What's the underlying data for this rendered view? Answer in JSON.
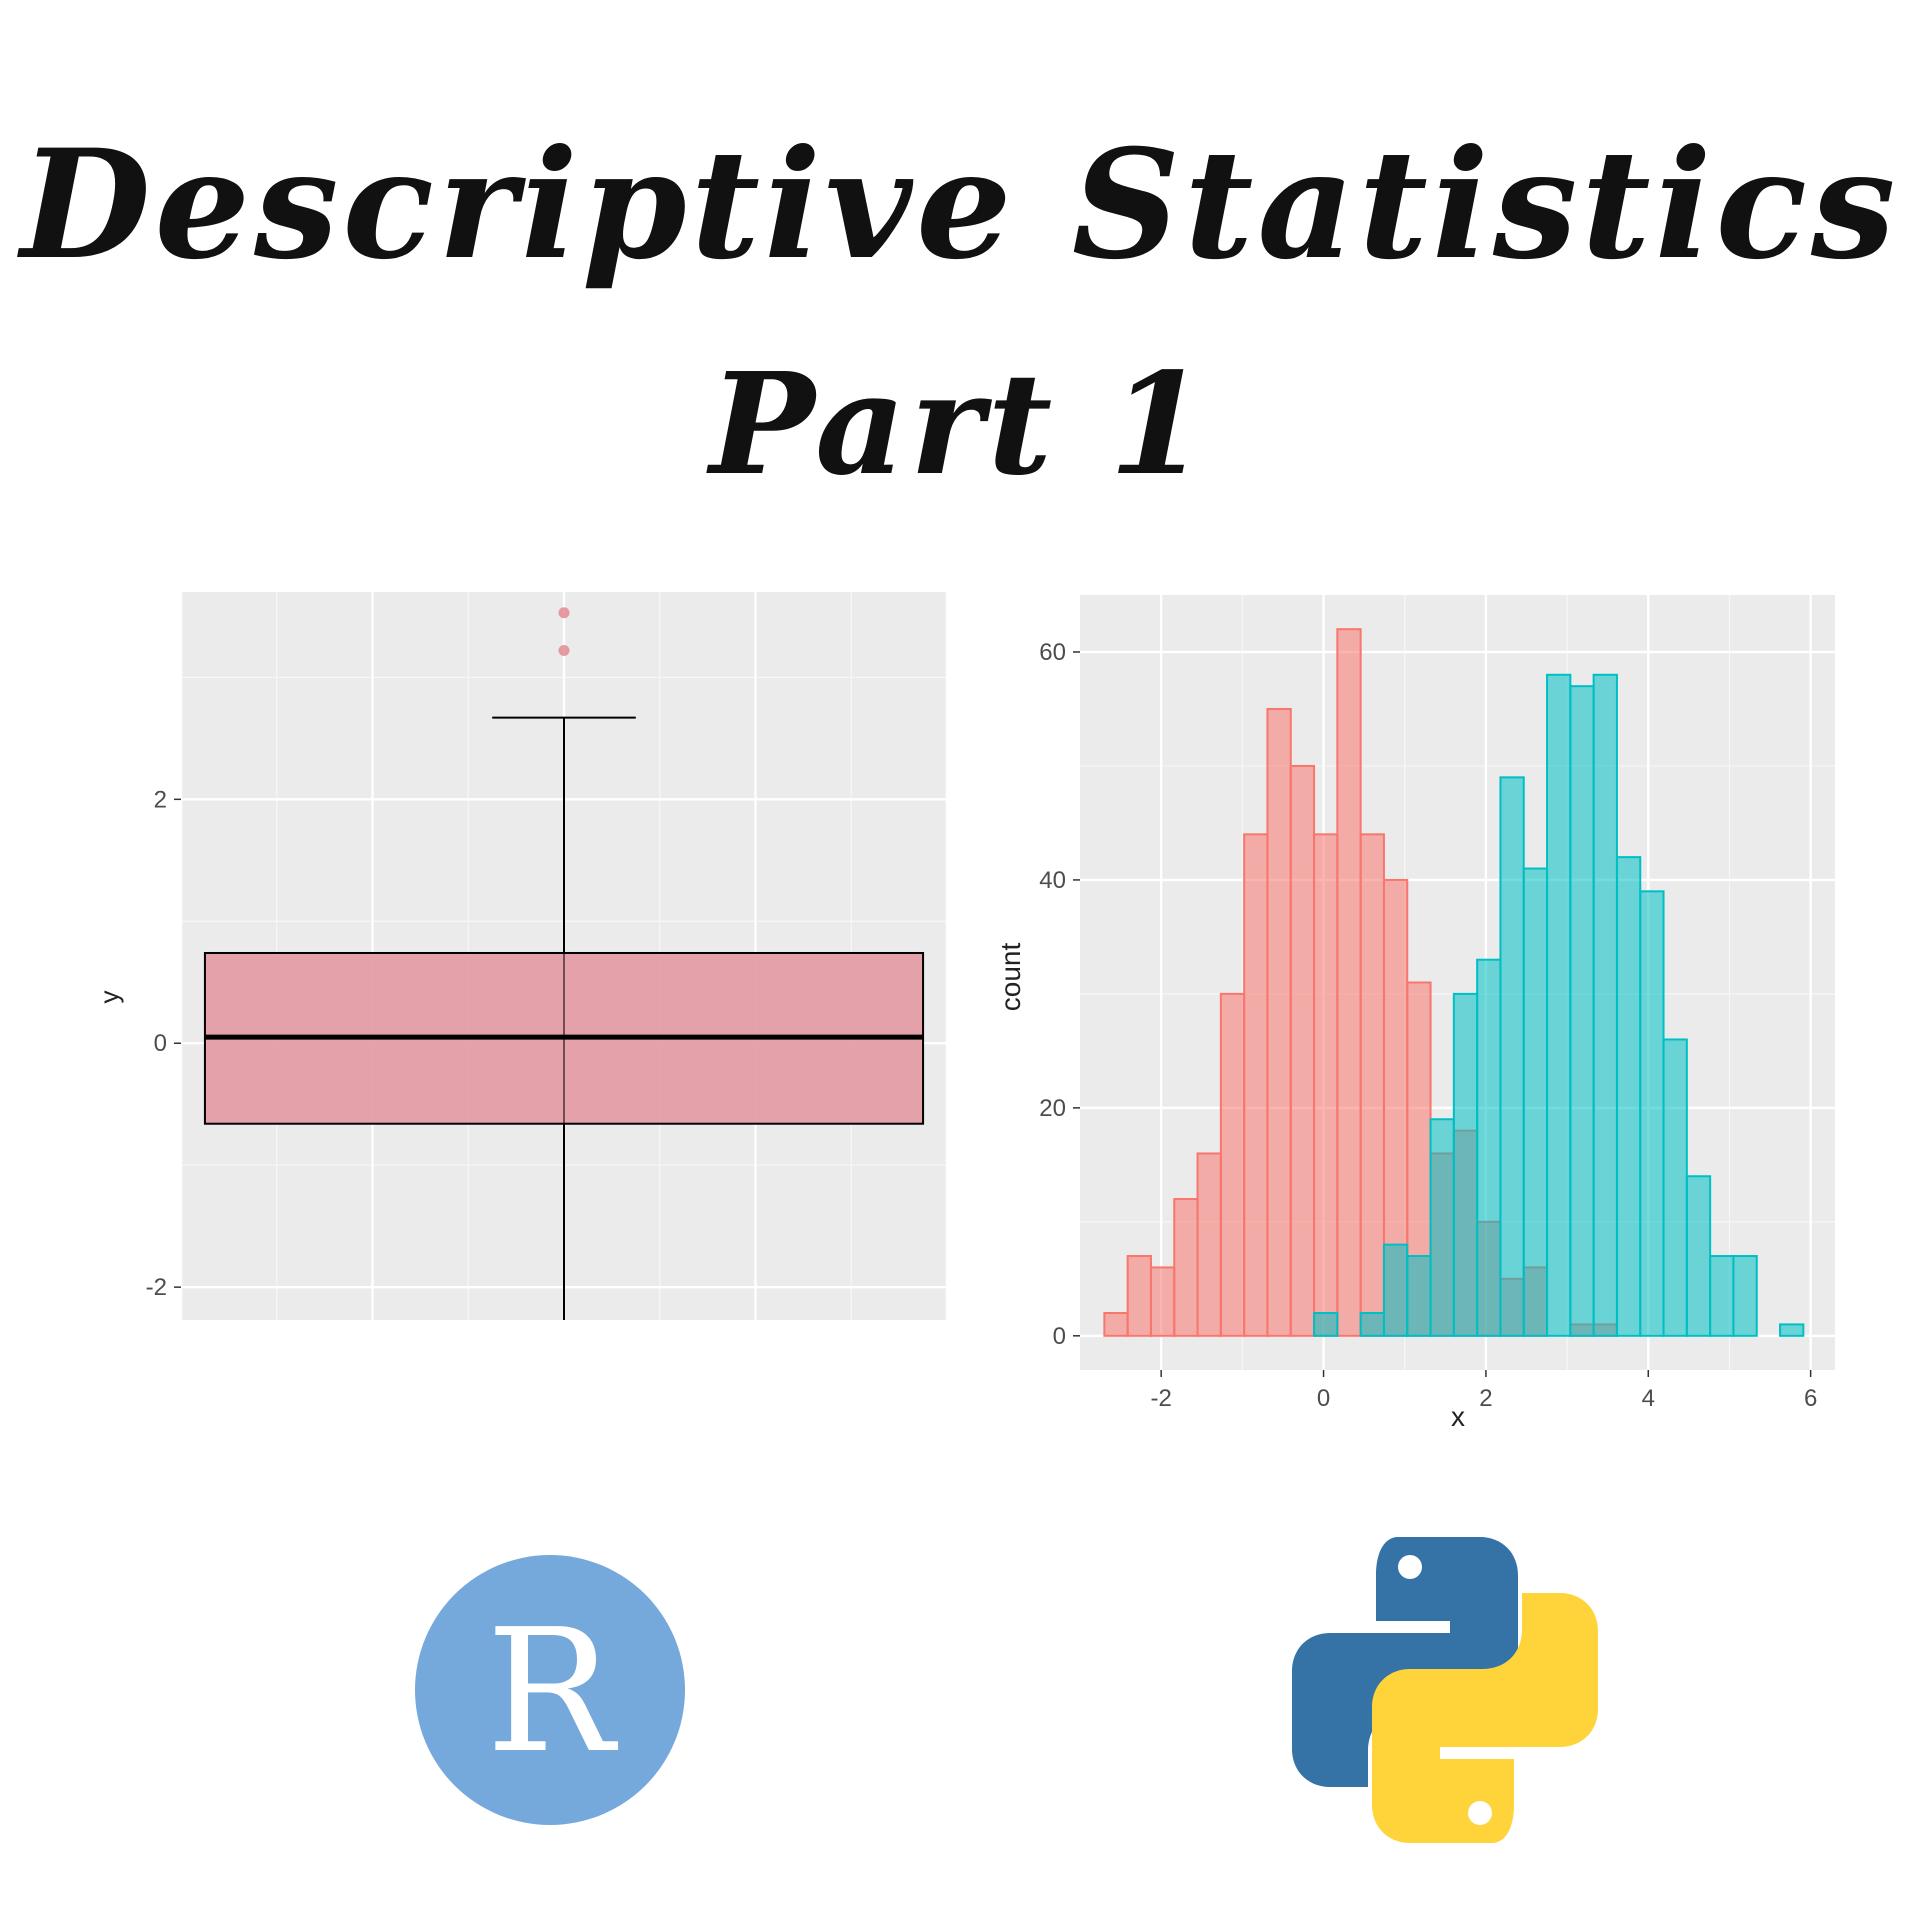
{
  "title": {
    "line1": "Descriptive Statistics",
    "line2": "Part 1"
  },
  "colors": {
    "panel_bg": "#EBEBEB",
    "grid": "#FFFFFF",
    "box_fill": "#E59DA6",
    "outlier": "#E58A94",
    "red_fill": "#F8766D",
    "cyan_fill": "#00BFC4",
    "r_logo": "#75A9DB",
    "python_blue": "#3572A5",
    "python_yellow": "#FFD43B"
  },
  "chart_data": [
    {
      "type": "box",
      "xlabel": "",
      "ylabel": "y",
      "xlim": [
        -0.4,
        0.4
      ],
      "ylim": [
        -2.95,
        3.7
      ],
      "x_ticks": [
        "-0.4",
        "-0.2",
        "0.0",
        "0.2",
        "0.4"
      ],
      "y_ticks": [
        "-2",
        "0",
        "2"
      ],
      "box": {
        "x_from": -0.375,
        "x_to": 0.375,
        "min": -2.67,
        "q1": -0.66,
        "median": 0.05,
        "q3": 0.74,
        "max": 2.67,
        "whisker_half_width": 0.075
      },
      "outliers": [
        3.22,
        3.53
      ]
    },
    {
      "type": "histogram",
      "xlabel": "x",
      "ylabel": "count",
      "xlim": [
        -3,
        6.3
      ],
      "ylim": [
        -3,
        65
      ],
      "x_ticks": [
        "-2",
        "0",
        "2",
        "4",
        "6"
      ],
      "y_ticks": [
        "0",
        "20",
        "40",
        "60"
      ],
      "bin_start": -2.7,
      "bin_width": 0.287,
      "series": [
        {
          "color": "#F8766D",
          "counts": [
            2,
            7,
            6,
            12,
            16,
            30,
            44,
            55,
            50,
            44,
            62,
            44,
            40,
            31,
            16,
            18,
            10,
            5,
            6,
            0,
            1,
            1,
            0,
            0,
            0,
            0,
            0,
            0,
            0,
            0
          ]
        },
        {
          "color": "#00BFC4",
          "counts": [
            0,
            0,
            0,
            0,
            0,
            0,
            0,
            0,
            0,
            2,
            0,
            2,
            8,
            7,
            19,
            30,
            33,
            49,
            41,
            58,
            57,
            58,
            42,
            39,
            26,
            14,
            7,
            7,
            0,
            1
          ]
        }
      ]
    }
  ],
  "logos": {
    "r": {
      "name": "r-logo",
      "letter": "R"
    },
    "python": {
      "name": "python-logo"
    }
  }
}
